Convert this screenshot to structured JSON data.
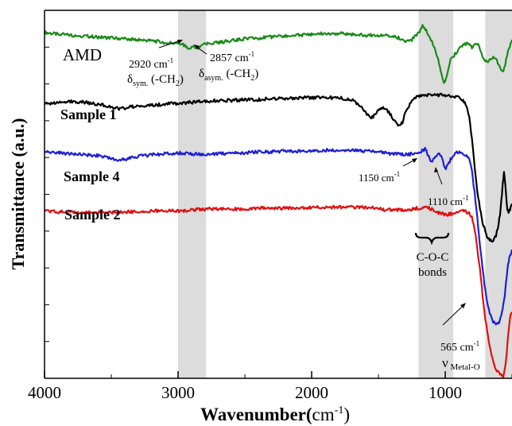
{
  "chart_data": {
    "type": "line",
    "xlabel_main": "Wavenumber(",
    "xlabel_unit": "cm",
    "xlabel_sup": "-1",
    "xlabel_close": ")",
    "ylabel": "Transmittance (a.u.)",
    "xlim": [
      4000,
      500
    ],
    "xticks": [
      "4000",
      "3000",
      "2000",
      "1000"
    ],
    "xtick_values": [
      4000,
      3000,
      2000,
      1000
    ],
    "y_minor_ticks": 9,
    "shaded_bands": [
      {
        "from": 3000,
        "to": 2790
      },
      {
        "from": 1200,
        "to": 940
      },
      {
        "from": 700,
        "to": 500
      }
    ],
    "series": [
      {
        "name": "AMD",
        "color": "#1a8a1a",
        "x": [
          4000,
          3900,
          3800,
          3700,
          3600,
          3500,
          3400,
          3300,
          3200,
          3100,
          3000,
          2950,
          2920,
          2900,
          2880,
          2857,
          2800,
          2700,
          2600,
          2500,
          2400,
          2300,
          2200,
          2100,
          2000,
          1900,
          1800,
          1700,
          1600,
          1500,
          1450,
          1400,
          1350,
          1300,
          1250,
          1200,
          1170,
          1150,
          1120,
          1100,
          1080,
          1060,
          1040,
          1020,
          1010,
          1000,
          990,
          975,
          960,
          940,
          920,
          900,
          880,
          860,
          840,
          820,
          800,
          780,
          760,
          740,
          720,
          700,
          680,
          660,
          640,
          620,
          600,
          580,
          565,
          550,
          530,
          510,
          500
        ],
        "y": [
          3.76,
          3.74,
          3.73,
          3.72,
          3.71,
          3.7,
          3.69,
          3.68,
          3.67,
          3.65,
          3.64,
          3.62,
          3.57,
          3.6,
          3.61,
          3.59,
          3.63,
          3.65,
          3.67,
          3.69,
          3.7,
          3.71,
          3.72,
          3.73,
          3.74,
          3.75,
          3.75,
          3.74,
          3.73,
          3.73,
          3.73,
          3.72,
          3.7,
          3.67,
          3.68,
          3.75,
          3.84,
          3.8,
          3.72,
          3.67,
          3.6,
          3.5,
          3.38,
          3.25,
          3.22,
          3.22,
          3.27,
          3.38,
          3.46,
          3.5,
          3.54,
          3.57,
          3.6,
          3.62,
          3.64,
          3.62,
          3.6,
          3.62,
          3.64,
          3.58,
          3.5,
          3.46,
          3.45,
          3.47,
          3.5,
          3.48,
          3.4,
          3.36,
          3.35,
          3.42,
          3.56,
          3.64,
          3.68
        ]
      },
      {
        "name": "Sample 1",
        "color": "#000000",
        "x": [
          4000,
          3900,
          3800,
          3700,
          3600,
          3500,
          3450,
          3400,
          3300,
          3200,
          3100,
          3000,
          2900,
          2800,
          2700,
          2600,
          2500,
          2400,
          2300,
          2200,
          2100,
          2000,
          1900,
          1800,
          1750,
          1700,
          1650,
          1600,
          1560,
          1520,
          1480,
          1450,
          1400,
          1380,
          1360,
          1340,
          1320,
          1300,
          1250,
          1200,
          1100,
          1000,
          950,
          900,
          880,
          860,
          840,
          820,
          800,
          780,
          760,
          740,
          720,
          700,
          680,
          660,
          640,
          620,
          600,
          590,
          580,
          570,
          560,
          550,
          540,
          530,
          520,
          510,
          500
        ],
        "y": [
          2.98,
          3.0,
          3.01,
          3.0,
          2.98,
          2.95,
          2.93,
          2.94,
          2.96,
          2.97,
          2.98,
          2.99,
          3.0,
          3.01,
          3.02,
          3.02,
          3.03,
          3.03,
          3.04,
          3.04,
          3.05,
          3.05,
          3.05,
          3.05,
          3.04,
          3.03,
          2.98,
          2.9,
          2.82,
          2.87,
          2.95,
          2.93,
          2.85,
          2.8,
          2.76,
          2.74,
          2.78,
          2.88,
          3.02,
          3.07,
          3.08,
          3.08,
          3.07,
          3.06,
          3.04,
          3.01,
          2.96,
          2.85,
          2.6,
          2.3,
          2.05,
          1.85,
          1.7,
          1.6,
          1.52,
          1.5,
          1.5,
          1.55,
          1.68,
          1.78,
          1.93,
          2.1,
          2.25,
          2.1,
          1.9,
          1.8,
          1.82,
          1.85,
          1.9
        ]
      },
      {
        "name": "Sample 4",
        "color": "#1f1fd6",
        "x": [
          4000,
          3900,
          3800,
          3700,
          3600,
          3500,
          3450,
          3400,
          3300,
          3200,
          3100,
          3000,
          2900,
          2800,
          2700,
          2600,
          2500,
          2400,
          2300,
          2200,
          2100,
          2000,
          1900,
          1800,
          1700,
          1600,
          1500,
          1450,
          1400,
          1350,
          1300,
          1250,
          1200,
          1160,
          1150,
          1140,
          1130,
          1110,
          1090,
          1070,
          1050,
          1030,
          1010,
          995,
          980,
          960,
          940,
          920,
          900,
          880,
          860,
          840,
          820,
          800,
          780,
          760,
          740,
          720,
          700,
          680,
          660,
          640,
          620,
          600,
          590,
          580,
          570,
          560,
          550,
          540,
          530,
          520,
          510,
          500
        ],
        "y": [
          2.47,
          2.45,
          2.44,
          2.43,
          2.42,
          2.39,
          2.37,
          2.38,
          2.41,
          2.43,
          2.44,
          2.45,
          2.44,
          2.43,
          2.44,
          2.45,
          2.45,
          2.46,
          2.46,
          2.47,
          2.47,
          2.47,
          2.48,
          2.48,
          2.48,
          2.47,
          2.46,
          2.45,
          2.44,
          2.44,
          2.43,
          2.44,
          2.46,
          2.48,
          2.5,
          2.47,
          2.43,
          2.35,
          2.37,
          2.42,
          2.45,
          2.41,
          2.32,
          2.28,
          2.32,
          2.38,
          2.42,
          2.45,
          2.46,
          2.46,
          2.44,
          2.42,
          2.38,
          2.25,
          2.02,
          1.75,
          1.45,
          1.18,
          0.95,
          0.78,
          0.68,
          0.62,
          0.58,
          0.6,
          0.63,
          0.7,
          0.75,
          0.85,
          0.95,
          1.1,
          1.25,
          1.3,
          1.35,
          1.4
        ]
      },
      {
        "name": "Sample 2",
        "color": "#e01010",
        "x": [
          4000,
          3900,
          3800,
          3700,
          3600,
          3500,
          3400,
          3300,
          3200,
          3100,
          3000,
          2900,
          2800,
          2700,
          2600,
          2500,
          2400,
          2300,
          2200,
          2100,
          2000,
          1900,
          1800,
          1700,
          1600,
          1500,
          1450,
          1400,
          1300,
          1250,
          1200,
          1150,
          1100,
          1050,
          1000,
          950,
          900,
          860,
          820,
          800,
          780,
          760,
          740,
          720,
          700,
          680,
          660,
          640,
          620,
          600,
          590,
          580,
          570,
          565,
          560,
          550,
          540,
          530,
          520,
          510,
          500
        ],
        "y": [
          1.82,
          1.81,
          1.81,
          1.8,
          1.8,
          1.8,
          1.81,
          1.81,
          1.82,
          1.82,
          1.82,
          1.83,
          1.84,
          1.84,
          1.84,
          1.84,
          1.85,
          1.85,
          1.85,
          1.85,
          1.86,
          1.86,
          1.86,
          1.86,
          1.86,
          1.85,
          1.83,
          1.83,
          1.83,
          1.84,
          1.85,
          1.86,
          1.84,
          1.8,
          1.78,
          1.79,
          1.81,
          1.82,
          1.8,
          1.75,
          1.62,
          1.42,
          1.18,
          0.9,
          0.65,
          0.45,
          0.3,
          0.18,
          0.1,
          0.06,
          0.05,
          0.04,
          0.03,
          0.02,
          0.05,
          0.12,
          0.25,
          0.45,
          0.6,
          0.68,
          0.72
        ]
      }
    ]
  },
  "labels": {
    "amd": "AMD",
    "sample1": "Sample 1",
    "sample4": "Sample 4",
    "sample2": "Sample 2"
  },
  "annotations": {
    "a2920_value": "2920 cm",
    "a2920_sup": "-1",
    "a2920_delta": "δ",
    "a2920_sub": "sym.",
    "a2920_group": " (-CH",
    "a2920_group_sub": "2",
    "a2920_group_close": ")",
    "a2857_value": "2857 cm",
    "a2857_sup": "-1",
    "a2857_delta": "δ",
    "a2857_sub": "asym.",
    "a2857_group": " (-CH",
    "a2857_group_sub": "2",
    "a2857_group_close": ")",
    "a1150_value": "1150 cm",
    "a1150_sup": "-1",
    "a1110_value": "1110 cm",
    "a1110_sup": "-1",
    "coc_line1": "C-O-C",
    "coc_line2": "bonds",
    "a565_value": "565 cm",
    "a565_sup": "-1",
    "a565_nu": "ν",
    "a565_sub": " Metal-O"
  }
}
